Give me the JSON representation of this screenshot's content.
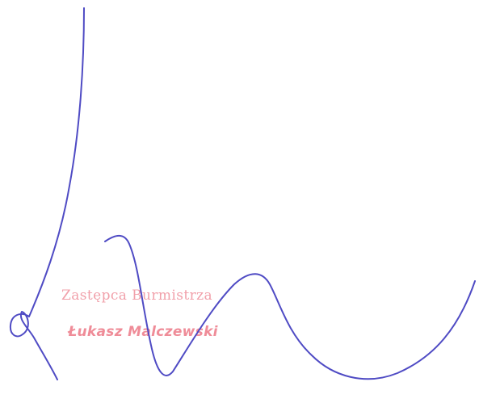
{
  "stamp": {
    "title": "Zastępca Burmistrza",
    "name": "Łukasz Malczewski",
    "color": "#f1a0aa"
  },
  "signature": {
    "ink_color": "#4f4bc4"
  }
}
